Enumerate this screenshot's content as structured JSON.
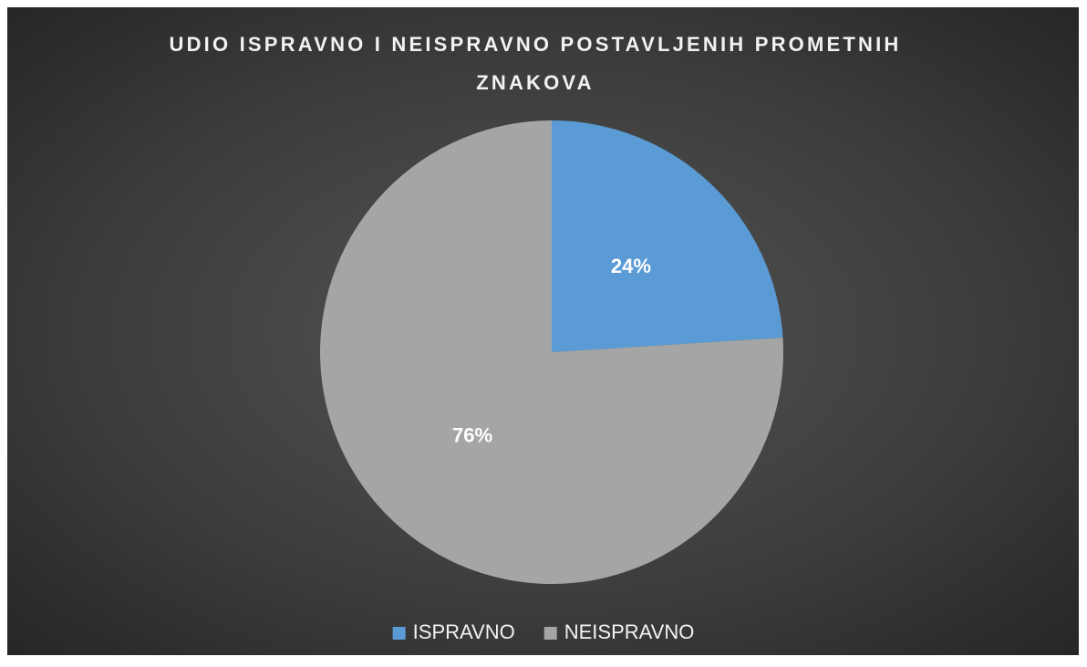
{
  "chart_data": {
    "type": "pie",
    "title": "UDIO ISPRAVNO I NEISPRAVNO POSTAVLJENIH PROMETNIH ZNAKOVA",
    "categories": [
      "ISPRAVNO",
      "NEISPRAVNO"
    ],
    "values": [
      24,
      76
    ],
    "value_labels": [
      "24%",
      "76%"
    ],
    "colors": [
      "#5b9bd5",
      "#a5a5a5"
    ],
    "legend": "bottom"
  }
}
